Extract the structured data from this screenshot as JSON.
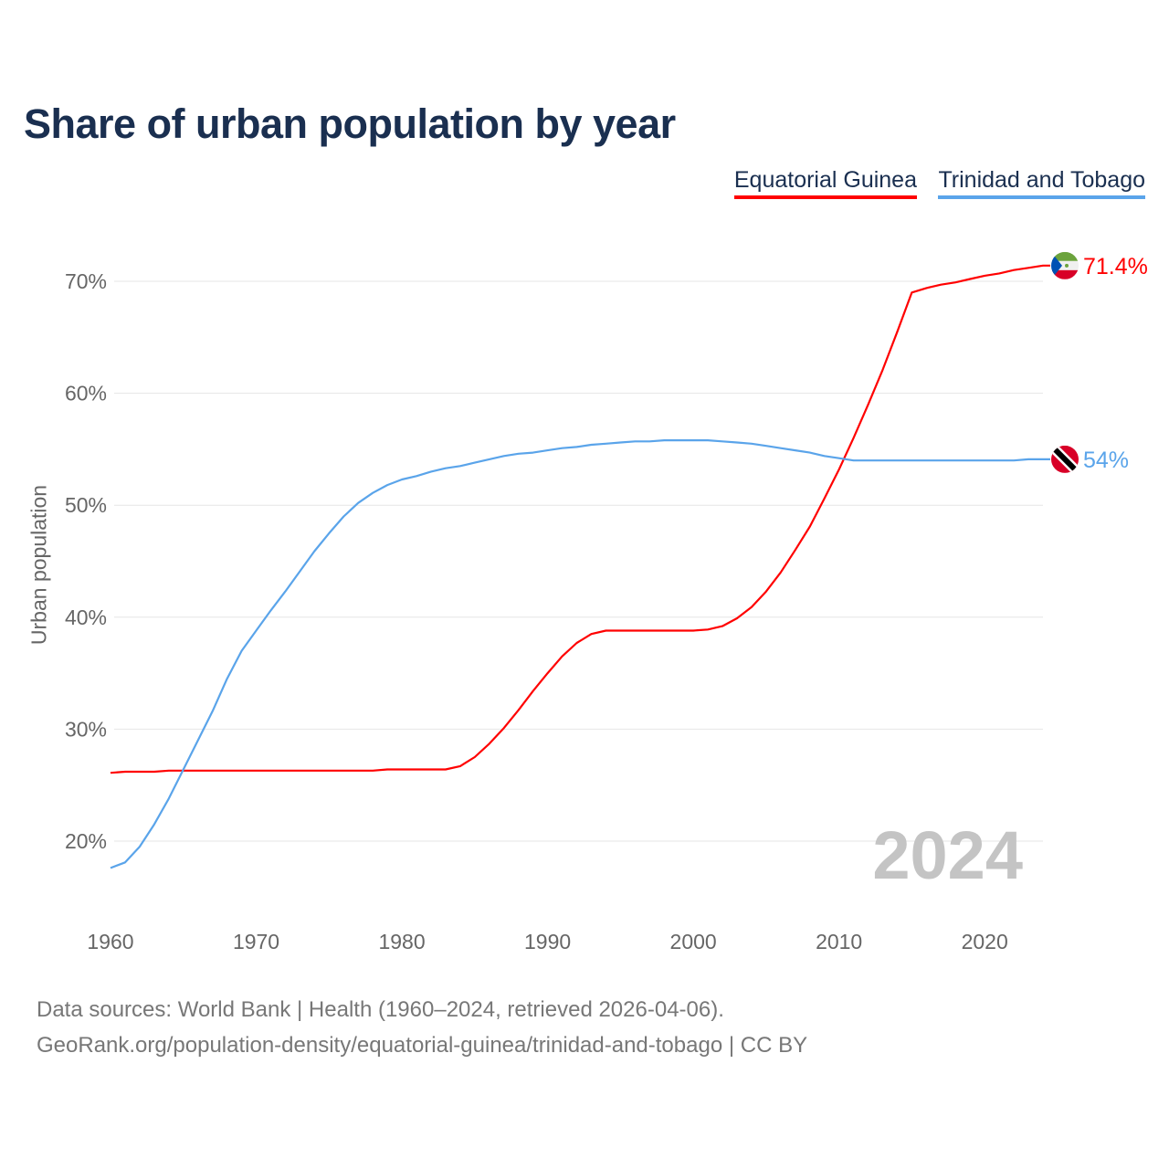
{
  "chart_data": {
    "type": "line",
    "title": "Share of urban population by year",
    "ylabel": "Urban population",
    "xlabel": "",
    "xlim": [
      1960,
      2024
    ],
    "ylim": [
      13.6,
      73
    ],
    "x_ticks": [
      1960,
      1970,
      1980,
      1990,
      2000,
      2010,
      2020
    ],
    "x_tick_labels": [
      "1960",
      "1970",
      "1980",
      "1990",
      "2000",
      "2010",
      "2020"
    ],
    "y_ticks": [
      20,
      30,
      40,
      50,
      60,
      70
    ],
    "y_tick_labels": [
      "20%",
      "30%",
      "40%",
      "50%",
      "60%",
      "70%"
    ],
    "grid": true,
    "legend_placement": "top-right",
    "year_watermark": "2024",
    "x": [
      1960,
      1961,
      1962,
      1963,
      1964,
      1965,
      1966,
      1967,
      1968,
      1969,
      1970,
      1971,
      1972,
      1973,
      1974,
      1975,
      1976,
      1977,
      1978,
      1979,
      1980,
      1981,
      1982,
      1983,
      1984,
      1985,
      1986,
      1987,
      1988,
      1989,
      1990,
      1991,
      1992,
      1993,
      1994,
      1995,
      1996,
      1997,
      1998,
      1999,
      2000,
      2001,
      2002,
      2003,
      2004,
      2005,
      2006,
      2007,
      2008,
      2009,
      2010,
      2011,
      2012,
      2013,
      2014,
      2015,
      2016,
      2017,
      2018,
      2019,
      2020,
      2021,
      2022,
      2023,
      2024
    ],
    "series": [
      {
        "name": "Equatorial Guinea",
        "color": "#ff0000",
        "end_label": "71.4%",
        "flag": "equatorial-guinea",
        "values": [
          26.1,
          26.2,
          26.2,
          26.2,
          26.3,
          26.3,
          26.3,
          26.3,
          26.3,
          26.3,
          26.3,
          26.3,
          26.3,
          26.3,
          26.3,
          26.3,
          26.3,
          26.3,
          26.3,
          26.4,
          26.4,
          26.4,
          26.4,
          26.4,
          26.7,
          27.5,
          28.7,
          30.1,
          31.7,
          33.4,
          35.0,
          36.5,
          37.7,
          38.5,
          38.8,
          38.8,
          38.8,
          38.8,
          38.8,
          38.8,
          38.8,
          38.9,
          39.2,
          39.9,
          40.9,
          42.3,
          44.0,
          46.0,
          48.1,
          50.6,
          53.2,
          56.0,
          59.0,
          62.1,
          65.5,
          69.0,
          69.4,
          69.7,
          69.9,
          70.2,
          70.5,
          70.7,
          71.0,
          71.2,
          71.4
        ]
      },
      {
        "name": "Trinidad and Tobago",
        "color": "#5aa4ea",
        "end_label": "54%",
        "flag": "trinidad-and-tobago",
        "values": [
          17.6,
          18.1,
          19.5,
          21.5,
          23.8,
          26.4,
          29.0,
          31.6,
          34.5,
          37.0,
          38.8,
          40.6,
          42.3,
          44.1,
          45.9,
          47.5,
          49.0,
          50.2,
          51.1,
          51.8,
          52.3,
          52.6,
          53.0,
          53.3,
          53.5,
          53.8,
          54.1,
          54.4,
          54.6,
          54.7,
          54.9,
          55.1,
          55.2,
          55.4,
          55.5,
          55.6,
          55.7,
          55.7,
          55.8,
          55.8,
          55.8,
          55.8,
          55.7,
          55.6,
          55.5,
          55.3,
          55.1,
          54.9,
          54.7,
          54.4,
          54.2,
          54.0,
          54.0,
          54.0,
          54.0,
          54.0,
          54.0,
          54.0,
          54.0,
          54.0,
          54.0,
          54.0,
          54.0,
          54.1,
          54.1
        ]
      }
    ]
  },
  "footer": {
    "line1": "Data sources: World Bank | Health (1960–2024, retrieved 2026-04-06).",
    "line2": "GeoRank.org/population-density/equatorial-guinea/trinidad-and-tobago | CC BY"
  }
}
